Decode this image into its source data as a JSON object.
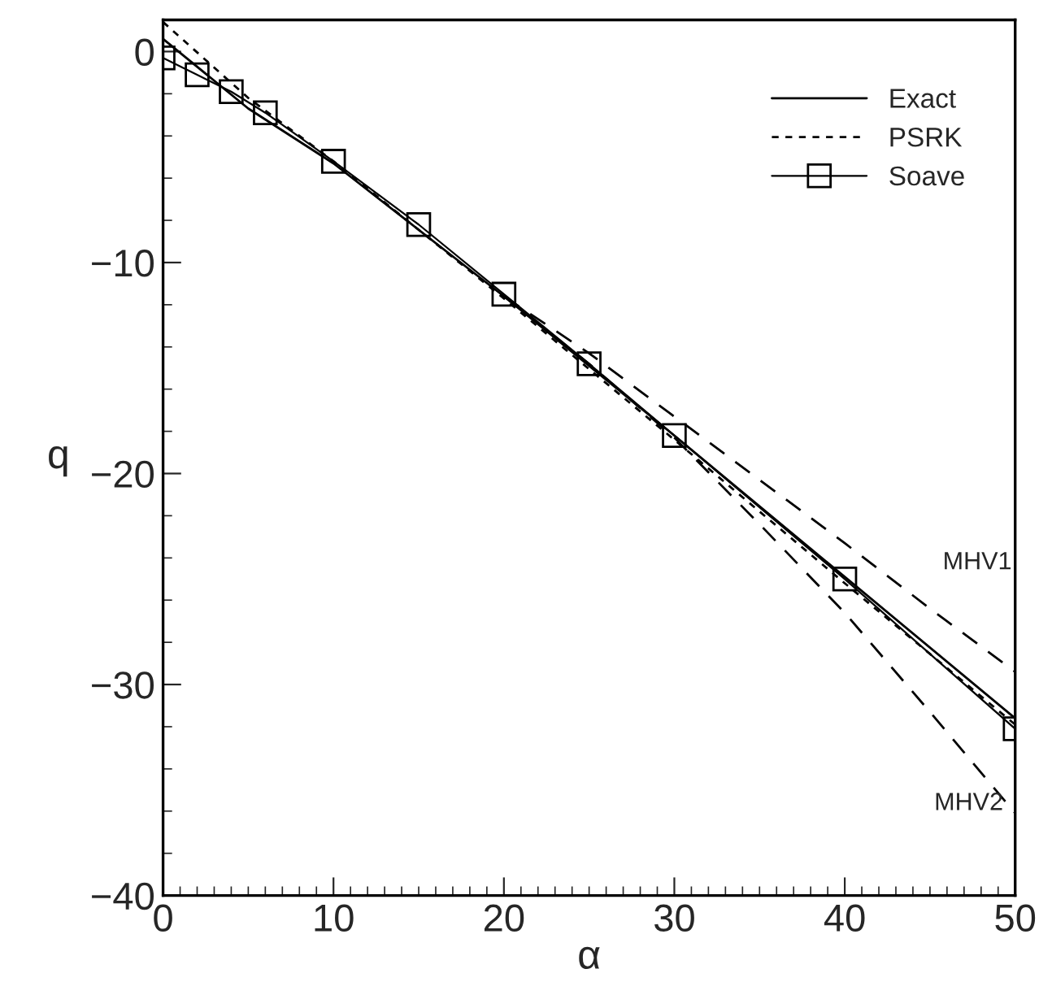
{
  "chart_data": {
    "type": "line",
    "xlabel": "α",
    "ylabel": "q",
    "xlim": [
      0,
      50
    ],
    "ylim": [
      -40,
      1.5
    ],
    "xticks": [
      0,
      10,
      20,
      30,
      40,
      50
    ],
    "yticks": [
      -40,
      -30,
      -20,
      -10,
      0
    ],
    "grid": false,
    "legend": "top right",
    "series": [
      {
        "name": "Exact",
        "color": "#000000",
        "line_style": "solid",
        "marker": "none",
        "x": [
          0,
          5,
          10,
          20,
          30,
          40,
          50
        ],
        "values": [
          0.6,
          -2.7,
          -5.3,
          -11.6,
          -18.2,
          -24.9,
          -31.6
        ]
      },
      {
        "name": "PSRK",
        "color": "#000000",
        "line_style": "dotted",
        "marker": "none",
        "x": [
          0,
          5,
          10,
          20,
          30,
          40,
          50
        ],
        "values": [
          1.4,
          -2.2,
          -5.2,
          -11.7,
          -18.4,
          -25.2,
          -31.9
        ]
      },
      {
        "name": "Soave",
        "color": "#000000",
        "line_style": "solid",
        "marker": "square",
        "x": [
          0,
          2,
          4,
          6,
          10,
          15,
          20,
          25,
          30,
          40,
          50
        ],
        "values": [
          -0.3,
          -1.1,
          -1.9,
          -2.9,
          -5.2,
          -8.2,
          -11.5,
          -14.8,
          -18.2,
          -25.0,
          -32.1
        ]
      },
      {
        "color": "#000000",
        "line_style": "dashed",
        "marker": "none",
        "x": [
          20,
          25,
          30,
          35,
          40,
          45,
          50
        ],
        "values": [
          -11.6,
          -14.3,
          -17.3,
          -20.3,
          -23.3,
          -26.4,
          -29.4
        ]
      },
      {
        "color": "#000000",
        "line_style": "dashed",
        "marker": "none",
        "x": [
          20,
          25,
          30,
          35,
          40,
          45,
          50
        ],
        "values": [
          -11.6,
          -14.8,
          -18.3,
          -22.4,
          -26.6,
          -31.3,
          -36.1
        ]
      }
    ],
    "annotations": [
      "MHV1",
      "MHV2"
    ]
  }
}
